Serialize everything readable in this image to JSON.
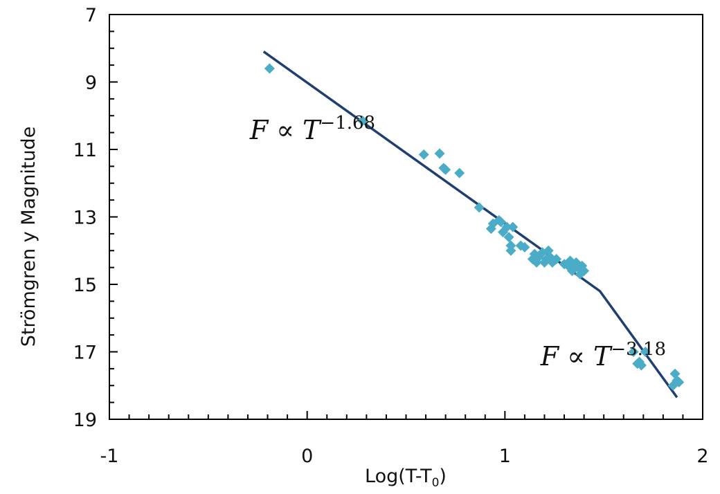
{
  "chart_data": {
    "type": "scatter",
    "xlabel": "Log(T-T",
    "xlabel_subscript": "0",
    "xlabel_close": ")",
    "ylabel": "Strömgren y Magnitude",
    "xlim": [
      -1,
      2
    ],
    "ylim": [
      19,
      7
    ],
    "y_inverted": true,
    "xticks": [
      -1,
      0,
      1,
      2
    ],
    "xtick_labels": [
      "-1",
      "0",
      "1",
      "2"
    ],
    "yticks": [
      7,
      9,
      11,
      13,
      15,
      17,
      19
    ],
    "ytick_labels": [
      "7",
      "9",
      "11",
      "13",
      "15",
      "17",
      "19"
    ],
    "grid": false,
    "marker_color": "#4aacc6",
    "line_color": "#1f3f73",
    "series": [
      {
        "points": [
          [
            -0.19,
            8.6
          ],
          [
            0.28,
            10.15
          ],
          [
            0.59,
            11.15
          ],
          [
            0.67,
            11.12
          ],
          [
            0.69,
            11.55
          ],
          [
            0.7,
            11.6
          ],
          [
            0.77,
            11.7
          ],
          [
            0.87,
            12.72
          ],
          [
            0.93,
            13.35
          ],
          [
            0.94,
            13.2
          ],
          [
            0.97,
            13.1
          ],
          [
            0.98,
            13.15
          ],
          [
            0.99,
            13.45
          ],
          [
            1.01,
            13.3
          ],
          [
            1.02,
            13.6
          ],
          [
            1.04,
            13.3
          ],
          [
            1.03,
            13.85
          ],
          [
            1.03,
            14.0
          ],
          [
            1.08,
            13.85
          ],
          [
            1.1,
            13.9
          ],
          [
            1.14,
            14.25
          ],
          [
            1.15,
            14.1
          ],
          [
            1.16,
            14.35
          ],
          [
            1.17,
            14.2
          ],
          [
            1.19,
            14.05
          ],
          [
            1.2,
            14.35
          ],
          [
            1.21,
            14.25
          ],
          [
            1.22,
            14.0
          ],
          [
            1.23,
            14.2
          ],
          [
            1.24,
            14.35
          ],
          [
            1.26,
            14.25
          ],
          [
            1.3,
            14.4
          ],
          [
            1.32,
            14.45
          ],
          [
            1.33,
            14.3
          ],
          [
            1.34,
            14.6
          ],
          [
            1.35,
            14.45
          ],
          [
            1.36,
            14.35
          ],
          [
            1.37,
            14.5
          ],
          [
            1.38,
            14.7
          ],
          [
            1.39,
            14.45
          ],
          [
            1.4,
            14.6
          ],
          [
            1.65,
            17.0
          ],
          [
            1.67,
            17.35
          ],
          [
            1.68,
            17.3
          ],
          [
            1.69,
            17.4
          ],
          [
            1.71,
            17.0
          ],
          [
            1.85,
            18.0
          ],
          [
            1.86,
            17.65
          ],
          [
            1.87,
            17.85
          ],
          [
            1.88,
            17.9
          ]
        ]
      }
    ],
    "fit_line": [
      [
        -0.22,
        8.1
      ],
      [
        1.48,
        15.2
      ],
      [
        1.87,
        18.35
      ]
    ],
    "annotations": [
      {
        "base": "F ∝ T",
        "exponent": "−1.68",
        "x": -0.29,
        "y": 10.45
      },
      {
        "base": "F ∝ T",
        "exponent": "−3.18",
        "x": 1.18,
        "y": 17.15
      }
    ]
  }
}
